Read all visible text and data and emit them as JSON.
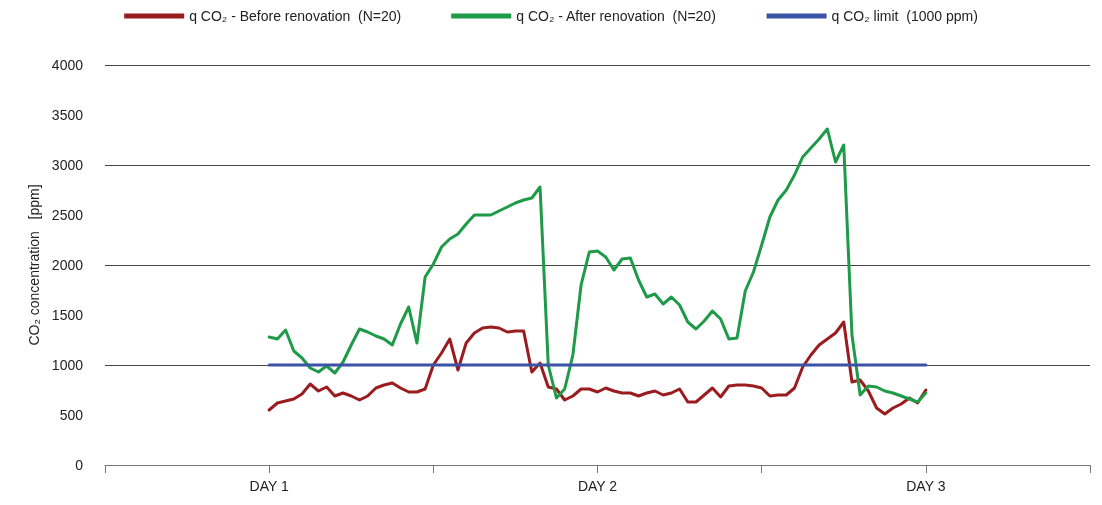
{
  "chart_data": {
    "type": "line",
    "ylabel": "CO₂ concentration   [ppm]",
    "categories": [
      null,
      null,
      null,
      null,
      null,
      null,
      null,
      null,
      null,
      null,
      null,
      null,
      null,
      null,
      null,
      null,
      null,
      null,
      null,
      null,
      "DAY 1",
      null,
      null,
      null,
      null,
      null,
      null,
      null,
      null,
      null,
      null,
      null,
      null,
      null,
      null,
      null,
      null,
      null,
      null,
      null,
      null,
      null,
      null,
      null,
      null,
      null,
      null,
      null,
      null,
      null,
      null,
      null,
      null,
      null,
      null,
      null,
      null,
      null,
      null,
      null,
      "DAY 2",
      null,
      null,
      null,
      null,
      null,
      null,
      null,
      null,
      null,
      null,
      null,
      null,
      null,
      null,
      null,
      null,
      null,
      null,
      null,
      null,
      null,
      null,
      null,
      null,
      null,
      null,
      null,
      null,
      null,
      null,
      null,
      null,
      null,
      null,
      null,
      null,
      null,
      null,
      null,
      "DAY 3",
      null,
      null,
      null,
      null,
      null,
      null,
      null,
      null,
      null,
      null,
      null,
      null,
      null,
      null,
      null,
      null,
      null,
      null,
      null,
      null
    ],
    "ylim": [
      0,
      4000
    ],
    "yticks": [
      0,
      500,
      1000,
      1500,
      2000,
      2500,
      3000,
      3500,
      4000
    ],
    "grid": "y",
    "legend": "top",
    "marker": "none",
    "line_style": "solid",
    "series": [
      {
        "name": "q CO₂ - Before renovation  (N=20)",
        "color": "#9b1c1f",
        "values": [
          null,
          null,
          null,
          null,
          null,
          null,
          null,
          null,
          null,
          null,
          null,
          null,
          null,
          null,
          null,
          null,
          null,
          null,
          null,
          null,
          550,
          620,
          640,
          660,
          710,
          810,
          740,
          780,
          690,
          720,
          690,
          650,
          690,
          770,
          800,
          820,
          770,
          730,
          730,
          760,
          1000,
          1120,
          1260,
          950,
          1220,
          1320,
          1370,
          1380,
          1370,
          1330,
          1340,
          1340,
          930,
          1020,
          780,
          760,
          650,
          690,
          760,
          760,
          730,
          770,
          740,
          720,
          720,
          690,
          720,
          740,
          700,
          720,
          760,
          630,
          630,
          700,
          770,
          680,
          790,
          800,
          800,
          790,
          770,
          690,
          700,
          700,
          770,
          980,
          1100,
          1200,
          1260,
          1320,
          1430,
          830,
          850,
          740,
          570,
          510,
          570,
          610,
          670,
          620,
          750,
          null,
          null,
          null,
          null,
          null,
          null,
          null,
          null,
          null,
          null,
          null,
          null,
          null,
          null,
          null,
          null,
          null,
          null,
          null,
          null
        ]
      },
      {
        "name": "q CO₂ - After renovation  (N=20)",
        "color": "#1e9a48",
        "values": [
          null,
          null,
          null,
          null,
          null,
          null,
          null,
          null,
          null,
          null,
          null,
          null,
          null,
          null,
          null,
          null,
          null,
          null,
          null,
          null,
          1280,
          1260,
          1350,
          1140,
          1070,
          970,
          930,
          990,
          920,
          1030,
          1200,
          1360,
          1330,
          1290,
          1260,
          1200,
          1410,
          1580,
          1220,
          1880,
          2010,
          2180,
          2260,
          2310,
          2410,
          2500,
          2500,
          2500,
          2540,
          2580,
          2620,
          2650,
          2670,
          2780,
          1000,
          670,
          760,
          1100,
          1800,
          2130,
          2140,
          2080,
          1950,
          2060,
          2070,
          1850,
          1680,
          1710,
          1610,
          1680,
          1600,
          1430,
          1360,
          1440,
          1540,
          1460,
          1260,
          1270,
          1740,
          1930,
          2200,
          2480,
          2650,
          2750,
          2900,
          3080,
          3170,
          3260,
          3360,
          3030,
          3200,
          1300,
          700,
          790,
          780,
          740,
          720,
          690,
          660,
          630,
          720,
          null,
          null,
          null,
          null,
          null,
          null,
          null,
          null,
          null,
          null,
          null,
          null,
          null,
          null,
          null,
          null,
          null,
          null,
          null,
          null
        ]
      },
      {
        "name": "q CO₂ limit  (1000 ppm)",
        "color": "#3a53a4",
        "values": [
          null,
          null,
          null,
          null,
          null,
          null,
          null,
          null,
          null,
          null,
          null,
          null,
          null,
          null,
          null,
          null,
          null,
          null,
          null,
          null,
          1000,
          1000,
          1000,
          1000,
          1000,
          1000,
          1000,
          1000,
          1000,
          1000,
          1000,
          1000,
          1000,
          1000,
          1000,
          1000,
          1000,
          1000,
          1000,
          1000,
          1000,
          1000,
          1000,
          1000,
          1000,
          1000,
          1000,
          1000,
          1000,
          1000,
          1000,
          1000,
          1000,
          1000,
          1000,
          1000,
          1000,
          1000,
          1000,
          1000,
          1000,
          1000,
          1000,
          1000,
          1000,
          1000,
          1000,
          1000,
          1000,
          1000,
          1000,
          1000,
          1000,
          1000,
          1000,
          1000,
          1000,
          1000,
          1000,
          1000,
          1000,
          1000,
          1000,
          1000,
          1000,
          1000,
          1000,
          1000,
          1000,
          1000,
          1000,
          1000,
          1000,
          1000,
          1000,
          1000,
          1000,
          1000,
          1000,
          1000,
          1000,
          null,
          null,
          null,
          null,
          null,
          null,
          null,
          null,
          null,
          null,
          null,
          null,
          null,
          null,
          null,
          null,
          null,
          null,
          null,
          null
        ]
      }
    ]
  }
}
